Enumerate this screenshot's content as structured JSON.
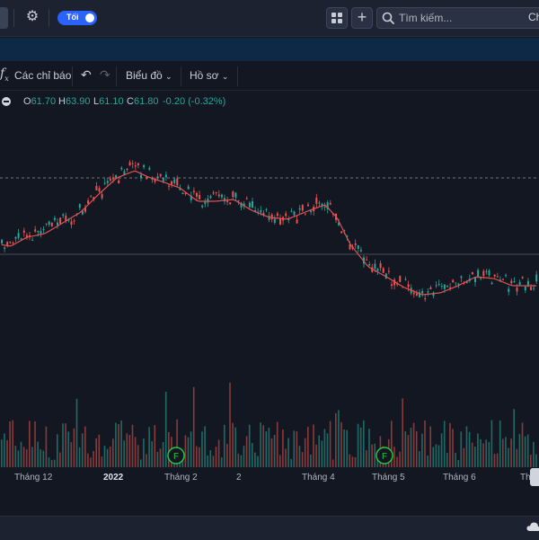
{
  "header": {
    "theme_toggle_label": "Tối",
    "search_placeholder": "Tìm kiếm...",
    "cutoff_text": "Ch"
  },
  "toolbar": {
    "indicators_label": "Các chỉ báo",
    "chart_label": "Biểu đồ",
    "profile_label": "Hồ sơ"
  },
  "legend": {
    "open_key": "O",
    "open_value": "61.70",
    "high_key": "H",
    "high_value": "63.90",
    "low_key": "L",
    "low_value": "61.10",
    "close_key": "C",
    "close_value": "61.80",
    "change": "-0.20 (-0.32%)"
  },
  "time_axis": {
    "labels": [
      "Tháng 12",
      "2022",
      "Tháng 2",
      "2",
      "Tháng 4",
      "Tháng 5",
      "Tháng 6",
      "Th"
    ]
  },
  "event_markers": [
    {
      "label": "F",
      "date": "Tháng 2"
    },
    {
      "label": "F",
      "date": "Tháng 5"
    }
  ],
  "colors": {
    "up": "#26a69a",
    "down": "#ef5350",
    "ma_line": "#e05252",
    "background": "#131722",
    "accent": "#2962ff",
    "event_marker": "#23c93f"
  },
  "icons": [
    "gear-icon",
    "grid-layout-icon",
    "plus-icon",
    "search-icon",
    "indicators-fx-icon",
    "undo-icon",
    "redo-icon",
    "chevron-down-icon",
    "collapse-minus-icon",
    "cloud-icon"
  ]
}
